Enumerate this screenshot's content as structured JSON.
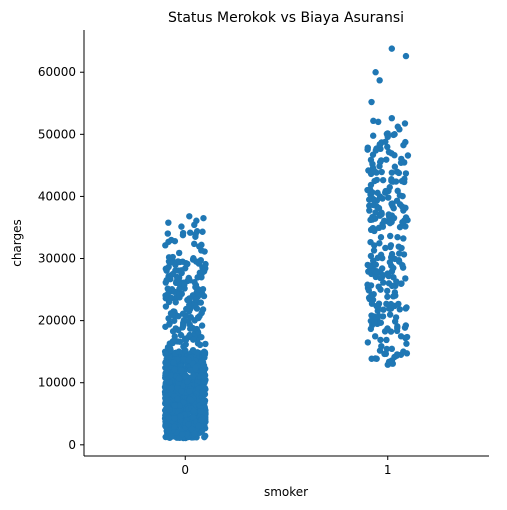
{
  "chart_data": {
    "type": "scatter",
    "subtype": "stripplot",
    "title": "Status Merokok vs Biaya Asuransi",
    "xlabel": "smoker",
    "ylabel": "charges",
    "categories": [
      "0",
      "1"
    ],
    "ylim": [
      -1800,
      66800
    ],
    "yticks": [
      0,
      10000,
      20000,
      30000,
      40000,
      50000,
      60000
    ],
    "grid": false,
    "legend": "none",
    "marker_color": "#1f77b4",
    "series": [
      {
        "category": "0",
        "count": 1064,
        "distribution": {
          "dense_range": [
            1100,
            15000
          ],
          "dense_share": 0.82,
          "sparse_range": [
            15000,
            30000
          ],
          "sparse_share": 0.16,
          "tail_range": [
            30000,
            37000
          ],
          "tail_share": 0.02
        },
        "outliers": [
          [
            0.02,
            36800
          ],
          [
            0.09,
            36500
          ],
          [
            0.05,
            33500
          ],
          [
            0.08,
            32200
          ],
          [
            -0.08,
            30200
          ],
          [
            -0.03,
            30900
          ],
          [
            0.1,
            29100
          ]
        ]
      },
      {
        "category": "1",
        "count": 274,
        "distribution": {
          "low_range": [
            13000,
            30000
          ],
          "low_share": 0.45,
          "high_range": [
            30000,
            49000
          ],
          "high_share": 0.51,
          "high_outlier_range": [
            49000,
            53000
          ],
          "high_outlier_share": 0.04
        },
        "outliers": [
          [
            0.02,
            63800
          ],
          [
            0.09,
            62600
          ],
          [
            -0.06,
            60000
          ],
          [
            -0.04,
            58700
          ],
          [
            -0.08,
            55200
          ],
          [
            0.02,
            52600
          ],
          [
            0.0,
            49600
          ],
          [
            0.0,
            12900
          ]
        ]
      }
    ]
  }
}
